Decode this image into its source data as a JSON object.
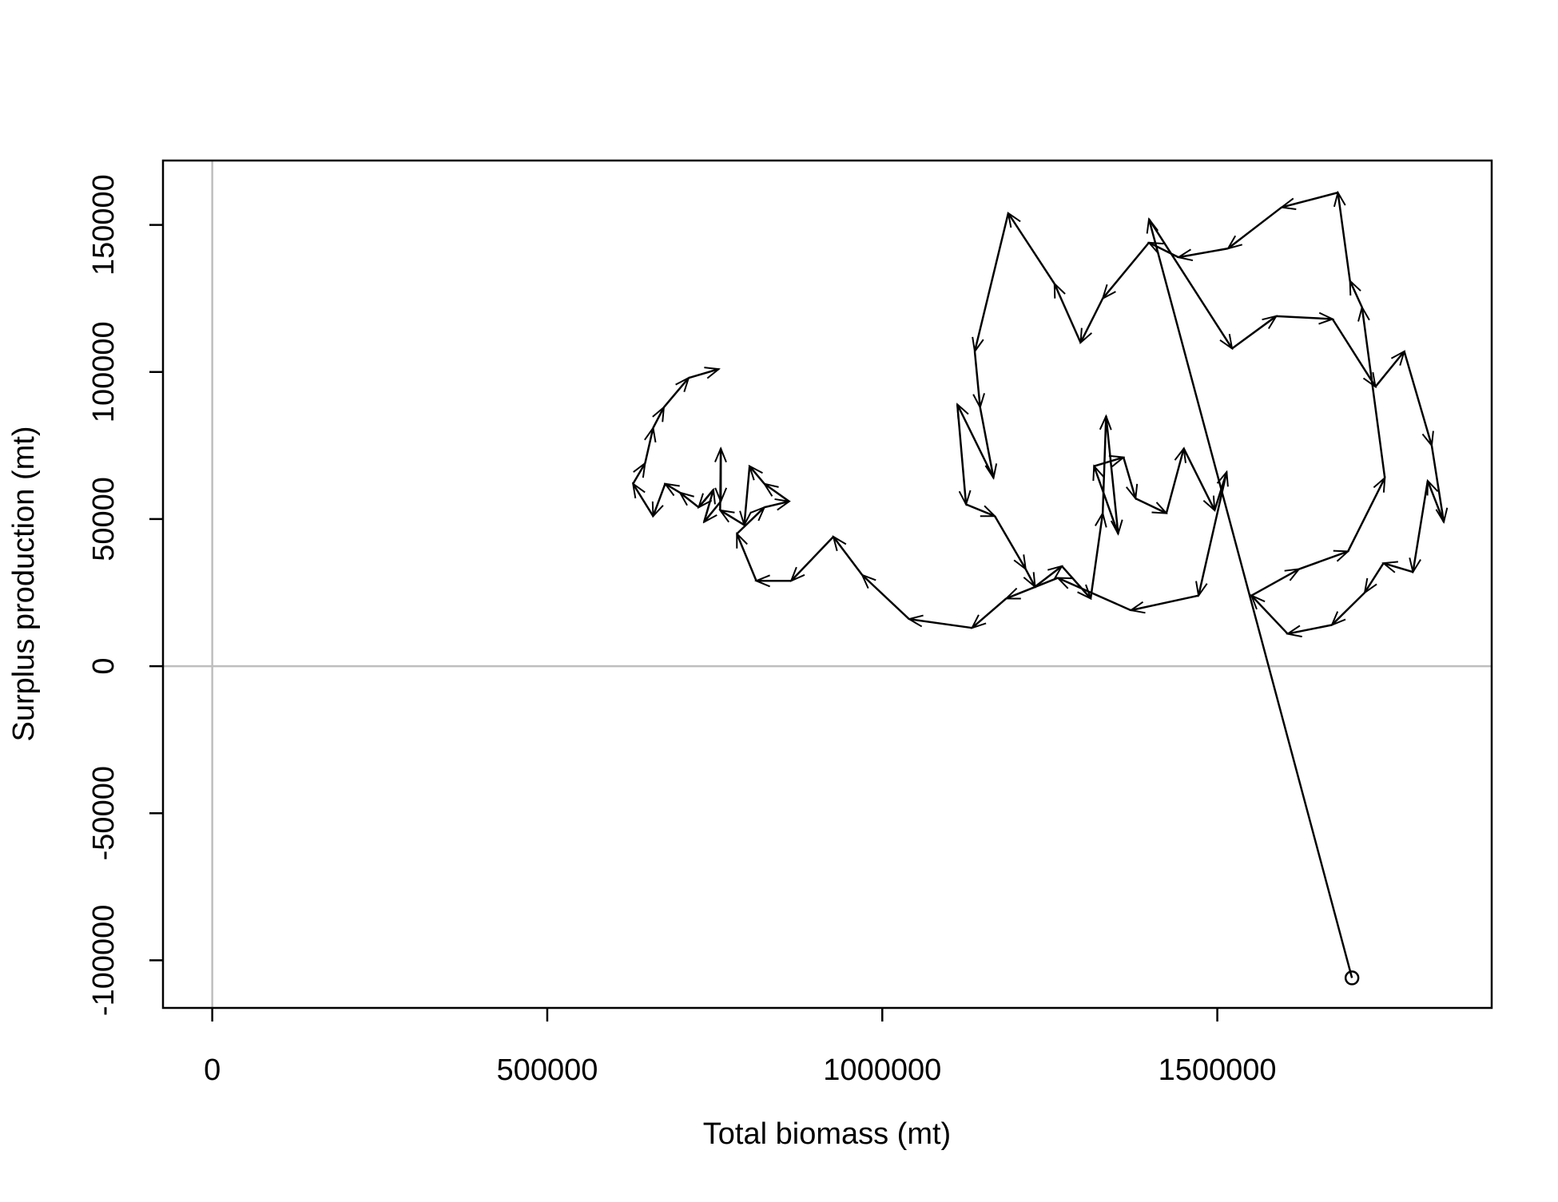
{
  "chart_data": {
    "type": "phase-arrows",
    "x_label": "Total biomass (mt)",
    "y_label": "Surplus production (mt)",
    "xlim": [
      -73500,
      1909500
    ],
    "ylim": [
      -116200,
      171900
    ],
    "xticks": [
      0,
      500000,
      1000000,
      1500000
    ],
    "yticks": [
      -100000,
      -50000,
      0,
      50000,
      100000,
      150000
    ],
    "reference_lines": {
      "x": 0,
      "y": 0,
      "color": "#bebebe"
    },
    "color": "#000000",
    "x": [
      1701000,
      1398000,
      1522000,
      1588000,
      1672000,
      1736000,
      1779000,
      1820000,
      1838000,
      1814000,
      1792000,
      1748000,
      1720000,
      1671000,
      1605000,
      1551000,
      1622000,
      1695000,
      1750000,
      1716000,
      1698000,
      1680000,
      1596000,
      1516000,
      1442000,
      1398000,
      1329000,
      1296000,
      1257000,
      1188000,
      1138000,
      1146000,
      1166000,
      1112000,
      1125000,
      1168000,
      1214000,
      1228000,
      1268000,
      1311000,
      1329000,
      1334000,
      1352000,
      1316000,
      1360000,
      1378000,
      1424000,
      1450000,
      1496000,
      1514000,
      1472000,
      1371000,
      1262000,
      1185000,
      1134000,
      1040000,
      970000,
      927000,
      864000,
      812000,
      783000,
      824000,
      861000,
      824000,
      802000,
      794000,
      758000,
      759000,
      759000,
      734000,
      748000,
      726000,
      698000,
      676000,
      658000,
      628000,
      646000,
      658000,
      674000,
      711000,
      756000
    ],
    "y": [
      -106000,
      152000,
      108000,
      119000,
      118000,
      95000,
      107000,
      75000,
      49000,
      63000,
      32000,
      35000,
      25000,
      14000,
      11000,
      24000,
      33000,
      39000,
      64000,
      122000,
      131000,
      161000,
      156000,
      142000,
      139000,
      144000,
      125000,
      110000,
      130000,
      154000,
      107000,
      88000,
      64000,
      89000,
      55000,
      51000,
      33000,
      27000,
      34000,
      23000,
      52000,
      85000,
      45000,
      68000,
      71000,
      57000,
      52000,
      74000,
      53000,
      66000,
      24000,
      19000,
      30000,
      23000,
      13000,
      16000,
      31000,
      44000,
      29000,
      29000,
      45000,
      54000,
      56000,
      62000,
      68000,
      48000,
      53000,
      74000,
      56000,
      49000,
      60000,
      54000,
      59000,
      62000,
      51000,
      62000,
      69000,
      81000,
      88000,
      98000,
      101000
    ]
  }
}
